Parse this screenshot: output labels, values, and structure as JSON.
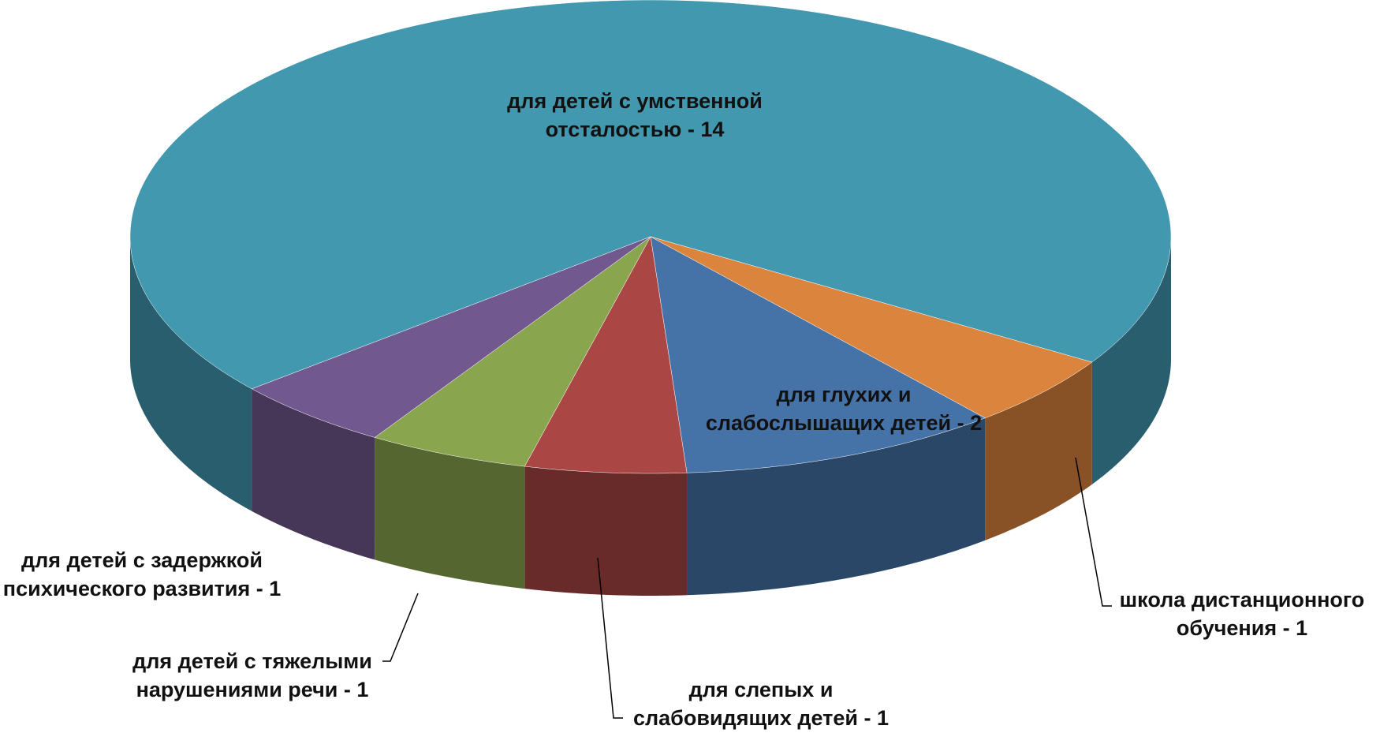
{
  "chart_data": {
    "type": "pie",
    "labels": [
      "для детей с умственной отсталостью - 14",
      "школа дистанционного обучения - 1",
      "для глухих и слабослышащих детей - 2",
      "для слепых и слабовидящих детей - 1",
      "для детей с тяжелыми нарушениями речи - 1",
      "для детей с задержкой психического развития - 1"
    ],
    "values": [
      14,
      1,
      2,
      1,
      1,
      1
    ],
    "colors": [
      "#4198af",
      "#db843d",
      "#4572a7",
      "#aa4643",
      "#89a54e",
      "#71588f"
    ]
  }
}
